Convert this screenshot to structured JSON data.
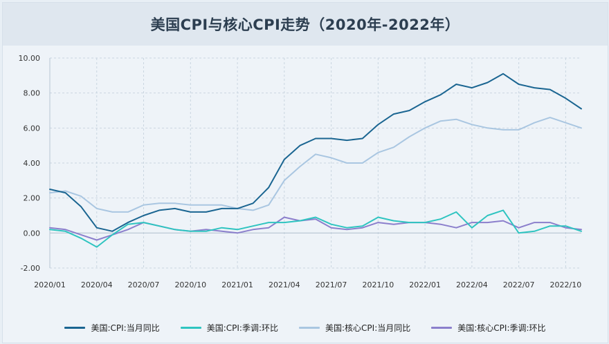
{
  "chart_data": {
    "type": "line",
    "title": "美国CPI与核心CPI走势（2020年-2022年）",
    "xlabel": "",
    "ylabel": "",
    "ylim": [
      -2,
      10
    ],
    "yticks": [
      "10.00",
      "8.00",
      "6.00",
      "4.00",
      "2.00",
      "0.00",
      "-2.00"
    ],
    "ytick_values": [
      10,
      8,
      6,
      4,
      2,
      0,
      -2
    ],
    "xtick_labels": [
      "2020/01",
      "2020/04",
      "2020/07",
      "2020/10",
      "2021/01",
      "2021/04",
      "2021/07",
      "2021/10",
      "2022/01",
      "2022/04",
      "2022/07",
      "2022/10"
    ],
    "xtick_index": [
      0,
      3,
      6,
      9,
      12,
      15,
      18,
      21,
      24,
      27,
      30,
      33
    ],
    "x": [
      "2020/01",
      "2020/02",
      "2020/03",
      "2020/04",
      "2020/05",
      "2020/06",
      "2020/07",
      "2020/08",
      "2020/09",
      "2020/10",
      "2020/11",
      "2020/12",
      "2021/01",
      "2021/02",
      "2021/03",
      "2021/04",
      "2021/05",
      "2021/06",
      "2021/07",
      "2021/08",
      "2021/09",
      "2021/10",
      "2021/11",
      "2021/12",
      "2022/01",
      "2022/02",
      "2022/03",
      "2022/04",
      "2022/05",
      "2022/06",
      "2022/07",
      "2022/08",
      "2022/09",
      "2022/10",
      "2022/11"
    ],
    "series": [
      {
        "name": "美国:CPI:当月同比",
        "color": "#1a6591",
        "values": [
          2.5,
          2.3,
          1.5,
          0.3,
          0.1,
          0.6,
          1.0,
          1.3,
          1.4,
          1.2,
          1.2,
          1.4,
          1.4,
          1.7,
          2.6,
          4.2,
          5.0,
          5.4,
          5.4,
          5.3,
          5.4,
          6.2,
          6.8,
          7.0,
          7.5,
          7.9,
          8.5,
          8.3,
          8.6,
          9.1,
          8.5,
          8.3,
          8.2,
          7.7,
          7.1
        ]
      },
      {
        "name": "美国:CPI:季调:环比",
        "color": "#2ec4c0",
        "values": [
          0.2,
          0.1,
          -0.3,
          -0.8,
          -0.1,
          0.5,
          0.6,
          0.4,
          0.2,
          0.1,
          0.1,
          0.3,
          0.2,
          0.4,
          0.6,
          0.6,
          0.7,
          0.9,
          0.5,
          0.3,
          0.4,
          0.9,
          0.7,
          0.6,
          0.6,
          0.8,
          1.2,
          0.3,
          1.0,
          1.3,
          0.0,
          0.1,
          0.4,
          0.4,
          0.1
        ]
      },
      {
        "name": "美国:核心CPI:当月同比",
        "color": "#a9c6e1",
        "values": [
          2.3,
          2.4,
          2.1,
          1.4,
          1.2,
          1.2,
          1.6,
          1.7,
          1.7,
          1.6,
          1.6,
          1.6,
          1.4,
          1.3,
          1.6,
          3.0,
          3.8,
          4.5,
          4.3,
          4.0,
          4.0,
          4.6,
          4.9,
          5.5,
          6.0,
          6.4,
          6.5,
          6.2,
          6.0,
          5.9,
          5.9,
          6.3,
          6.6,
          6.3,
          6.0
        ]
      },
      {
        "name": "美国:核心CPI:季调:环比",
        "color": "#8b7fcc",
        "values": [
          0.3,
          0.2,
          -0.1,
          -0.4,
          -0.1,
          0.2,
          0.6,
          0.4,
          0.2,
          0.1,
          0.2,
          0.1,
          0.0,
          0.2,
          0.3,
          0.9,
          0.7,
          0.8,
          0.3,
          0.2,
          0.3,
          0.6,
          0.5,
          0.6,
          0.6,
          0.5,
          0.3,
          0.6,
          0.6,
          0.7,
          0.3,
          0.6,
          0.6,
          0.3,
          0.2
        ]
      }
    ],
    "grid": true,
    "legend_position": "bottom"
  },
  "legend": {
    "items": [
      {
        "label": "美国:CPI:当月同比",
        "color": "#1a6591"
      },
      {
        "label": "美国:CPI:季调:环比",
        "color": "#2ec4c0"
      },
      {
        "label": "美国:核心CPI:当月同比",
        "color": "#a9c6e1"
      },
      {
        "label": "美国:核心CPI:季调:环比",
        "color": "#8b7fcc"
      }
    ]
  }
}
